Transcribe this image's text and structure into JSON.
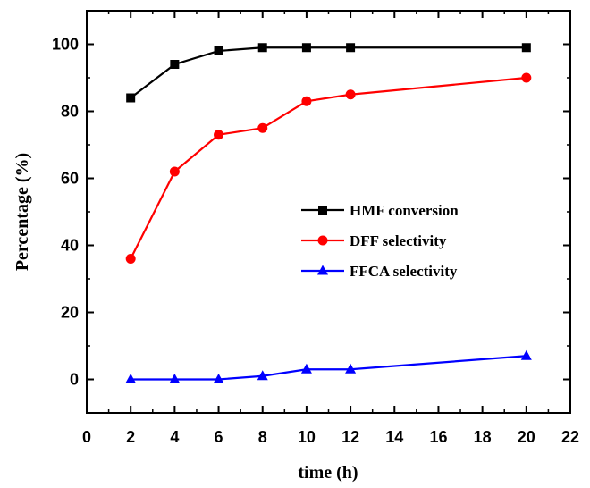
{
  "chart_data": {
    "type": "line",
    "title": "",
    "xlabel": "time (h)",
    "ylabel": "Percentage (%)",
    "xlim": [
      0,
      22
    ],
    "ylim": [
      -10,
      110
    ],
    "xticks": [
      0,
      2,
      4,
      6,
      8,
      10,
      12,
      14,
      16,
      18,
      20,
      22
    ],
    "yticks": [
      0,
      20,
      40,
      60,
      80,
      100
    ],
    "grid": false,
    "legend_position": "right-middle",
    "x": [
      2,
      4,
      6,
      8,
      10,
      12,
      20
    ],
    "series": [
      {
        "name": "HMF conversion",
        "color": "#000000",
        "marker": "square",
        "values": [
          84,
          94,
          98,
          99,
          99,
          99,
          99
        ]
      },
      {
        "name": "DFF selectivity",
        "color": "#ff0000",
        "marker": "circle",
        "values": [
          36,
          62,
          73,
          75,
          83,
          85,
          90
        ]
      },
      {
        "name": "FFCA selectivity",
        "color": "#0000ff",
        "marker": "triangle",
        "values": [
          0,
          0,
          0,
          1,
          3,
          3,
          7
        ]
      }
    ]
  }
}
